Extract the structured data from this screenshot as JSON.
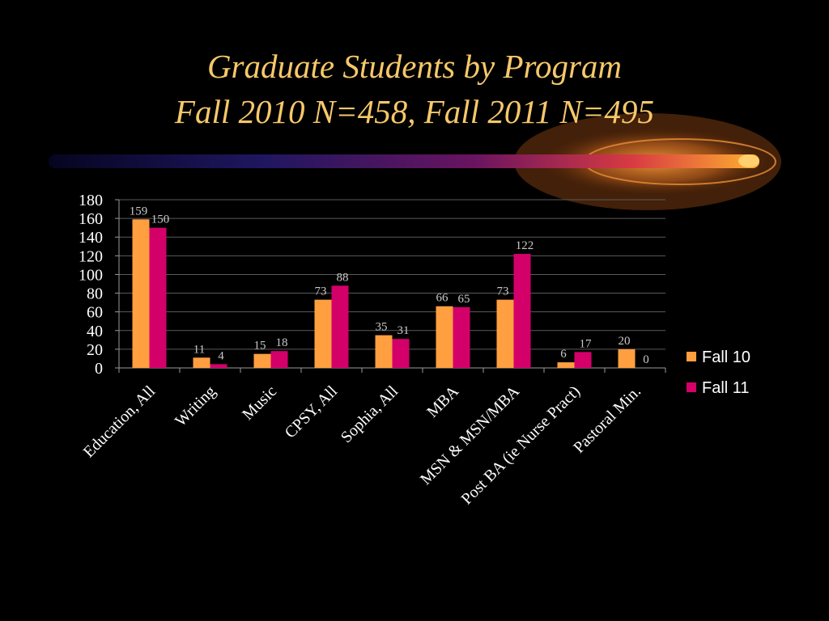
{
  "title": {
    "line1": "Graduate Students by Program",
    "line2": "Fall 2010 N=458, Fall 2011 N=495"
  },
  "colors": {
    "background": "#000000",
    "title": "#f6c86a",
    "fall10": "#ff9f40",
    "fall11": "#d4006a"
  },
  "chart_data": {
    "type": "bar",
    "categories": [
      "Education, All",
      "Writing",
      "Music",
      "CPSY, All",
      "Sophia, All",
      "MBA",
      "MSN & MSN/MBA",
      "Post BA (ie Nurse Pract)",
      "Pastoral Min."
    ],
    "series": [
      {
        "name": "Fall  10",
        "values": [
          159,
          11,
          15,
          73,
          35,
          66,
          73,
          6,
          20
        ]
      },
      {
        "name": "Fall  11",
        "values": [
          150,
          4,
          18,
          88,
          31,
          65,
          122,
          17,
          0
        ]
      }
    ],
    "ylim": [
      0,
      180
    ],
    "yticks": [
      0,
      20,
      40,
      60,
      80,
      100,
      120,
      140,
      160,
      180
    ],
    "grid": true,
    "legend": "right"
  }
}
